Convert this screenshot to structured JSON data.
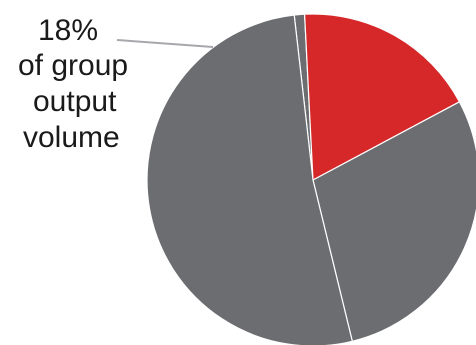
{
  "chart_data": {
    "type": "pie",
    "slices": [
      {
        "value": 1,
        "color": "#6b6d71"
      },
      {
        "value": 18,
        "color": "#d62828"
      },
      {
        "value": 29,
        "color": "#6b6d71"
      },
      {
        "value": 52,
        "color": "#6b6d71"
      }
    ],
    "annotation": {
      "value_label": "18%",
      "lines": [
        "of group",
        "output",
        "volume"
      ]
    },
    "leader_line_color": "#a6a8ab"
  }
}
